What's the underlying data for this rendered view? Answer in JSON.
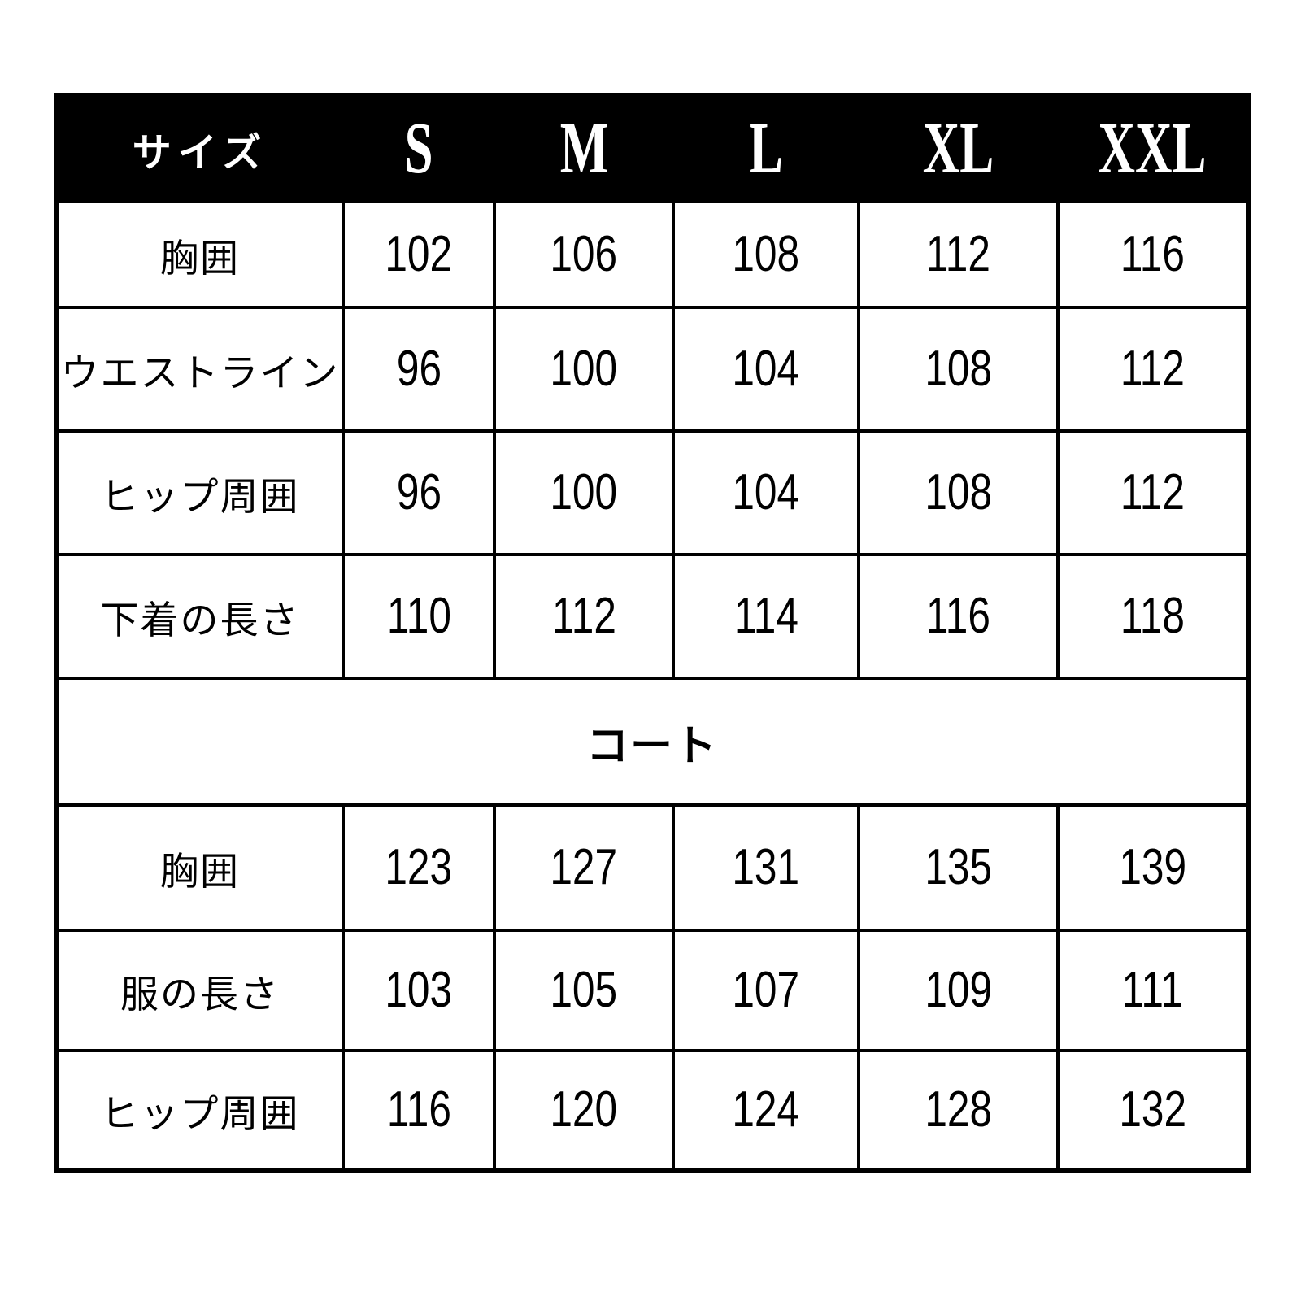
{
  "table": {
    "header": {
      "size_label": "サイズ",
      "columns": [
        "S",
        "M",
        "L",
        "XL",
        "XXL"
      ]
    },
    "rows": [
      {
        "label": "胸囲",
        "values": [
          "102",
          "106",
          "108",
          "112",
          "116"
        ]
      },
      {
        "label": "ウエストライン",
        "values": [
          "96",
          "100",
          "104",
          "108",
          "112"
        ]
      },
      {
        "label": "ヒップ周囲",
        "values": [
          "96",
          "100",
          "104",
          "108",
          "112"
        ]
      },
      {
        "label": "下着の長さ",
        "values": [
          "110",
          "112",
          "114",
          "116",
          "118"
        ]
      }
    ],
    "coat_section_label": "コート",
    "coat_rows": [
      {
        "label": "胸囲",
        "values": [
          "123",
          "127",
          "131",
          "135",
          "139"
        ]
      },
      {
        "label": "服の長さ",
        "values": [
          "103",
          "105",
          "107",
          "109",
          "111"
        ]
      },
      {
        "label": "ヒップ周囲",
        "values": [
          "116",
          "120",
          "124",
          "128",
          "132"
        ]
      }
    ]
  },
  "colors": {
    "header_bg": "#000000",
    "header_text": "#ffffff",
    "body_text": "#000000",
    "grid_line": "#000000",
    "background": "#ffffff"
  }
}
